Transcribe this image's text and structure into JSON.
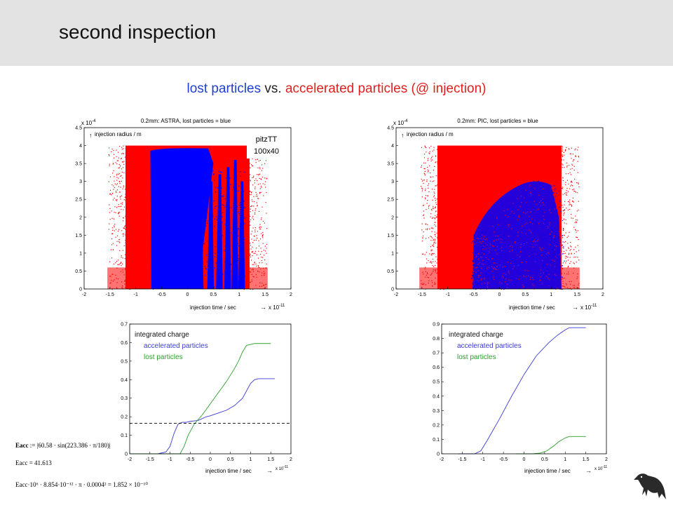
{
  "title": "second inspection",
  "subtitle": {
    "lost": "lost particles",
    "vs": " vs. ",
    "accelerated": "accelerated particles",
    "rest": " (@ injection)"
  },
  "colors": {
    "lost": "#1f3fd1",
    "accelerated": "#e0201e",
    "header": "#e3e3e3"
  },
  "scatter_left": {
    "title": "0.2mm: ASTRA, lost particles = blue",
    "ylabel": "injection radius / m",
    "xlabel": "injection time / sec",
    "yexp": "x 10",
    "yexp_power": "-4",
    "xexp": "x 10",
    "xexp_power": "-11",
    "annotation_line1": "pitzTT",
    "annotation_line2": "100x40",
    "xticks": [
      "-2",
      "-1.5",
      "-1",
      "-0.5",
      "0",
      "0.5",
      "1",
      "1.5",
      "2"
    ],
    "yticks": [
      "0",
      "0.5",
      "1",
      "1.5",
      "2",
      "2.5",
      "3",
      "3.5",
      "4",
      "4.5"
    ]
  },
  "scatter_right": {
    "title": "0.2mm: PIC, lost particles = blue",
    "ylabel": "injection radius / m",
    "xlabel": "injection time / sec",
    "yexp": "x 10",
    "yexp_power": "-4",
    "xexp": "x 10",
    "xexp_power": "-11",
    "xticks": [
      "-2",
      "-1.5",
      "-1",
      "-0.5",
      "0",
      "0.5",
      "1",
      "1.5",
      "2"
    ],
    "yticks": [
      "0",
      "0.5",
      "1",
      "1.5",
      "2",
      "2.5",
      "3",
      "3.5",
      "4",
      "4.5"
    ]
  },
  "line_left": {
    "legend_title": "integrated charge",
    "legend_blue": "accelerated particles",
    "legend_green": "lost particles",
    "xlabel": "injection time / sec",
    "xexp": "x 10",
    "xexp_power": "-11",
    "xticks": [
      "-2",
      "-1.5",
      "-1",
      "-0.5",
      "0",
      "0.5",
      "1",
      "1.5",
      "2"
    ],
    "yticks": [
      "0",
      "0.1",
      "0.2",
      "0.3",
      "0.4",
      "0.5",
      "0.6",
      "0.7"
    ]
  },
  "line_right": {
    "legend_title": "integrated charge",
    "legend_blue": "accelerated particles",
    "legend_green": "lost particles",
    "xlabel": "injection time / sec",
    "xexp": "x 10",
    "xexp_power": "-11",
    "xticks": [
      "-2",
      "-1.5",
      "-1",
      "-0.5",
      "0",
      "0.5",
      "1",
      "1.5",
      "2"
    ],
    "yticks": [
      "0",
      "0.1",
      "0.2",
      "0.3",
      "0.4",
      "0.5",
      "0.6",
      "0.7",
      "0.8",
      "0.9"
    ]
  },
  "chart_data": [
    {
      "type": "scatter",
      "title": "0.2mm: ASTRA, lost particles = blue",
      "xlabel": "injection time / sec",
      "ylabel": "injection radius / m",
      "x_multiplier": "1e-11",
      "y_multiplier": "1e-4",
      "xlim": [
        -2,
        2
      ],
      "ylim": [
        0,
        4.5
      ],
      "grid": false,
      "series": [
        {
          "color": "#ff0000",
          "x_range": [
            -1.3,
            1.3
          ],
          "y_range": [
            0,
            4
          ]
        },
        {
          "color": "#0000ff",
          "x_range": [
            -0.7,
            1.1
          ],
          "y_range": [
            0,
            3.95
          ]
        }
      ]
    },
    {
      "type": "scatter",
      "title": "0.2mm: PIC, lost particles = blue",
      "xlabel": "injection time / sec",
      "ylabel": "injection radius / m",
      "x_multiplier": "1e-11",
      "y_multiplier": "1e-4",
      "xlim": [
        -2,
        2
      ],
      "ylim": [
        0,
        4.5
      ],
      "grid": false,
      "series": [
        {
          "color": "#ff0000",
          "x_range": [
            -1.3,
            1.3
          ],
          "y_range": [
            0,
            4
          ]
        },
        {
          "color": "#0000ff",
          "x_range": [
            -0.5,
            1.2
          ],
          "y_range": [
            0,
            3.1
          ]
        }
      ]
    },
    {
      "type": "line",
      "xlabel": "injection time / sec",
      "x_multiplier": "1e-11",
      "xlim": [
        -2,
        2
      ],
      "ylim": [
        0,
        0.7
      ],
      "grid": false,
      "hline": 0.165,
      "series": [
        {
          "name": "accelerated particles",
          "color": "#3b3bd6",
          "x": [
            -2,
            -1.5,
            -1.3,
            -1.1,
            -1.0,
            -0.9,
            -0.8,
            -0.7,
            -0.6,
            -0.5,
            -0.3,
            -0.1,
            0.0,
            0.2,
            0.4,
            0.6,
            0.8,
            0.9,
            1.0,
            1.1,
            1.2,
            1.3,
            1.5,
            1.6
          ],
          "y": [
            0,
            0,
            0,
            0.01,
            0.04,
            0.11,
            0.16,
            0.17,
            0.17,
            0.175,
            0.18,
            0.2,
            0.205,
            0.22,
            0.235,
            0.26,
            0.3,
            0.34,
            0.38,
            0.4,
            0.405,
            0.405,
            0.405,
            0.405
          ]
        },
        {
          "name": "lost particles",
          "color": "#2ca02c",
          "x": [
            -2,
            -1,
            -0.75,
            -0.65,
            -0.55,
            -0.4,
            -0.2,
            0,
            0.2,
            0.4,
            0.6,
            0.7,
            0.8,
            0.9,
            1.0,
            1.1,
            1.5
          ],
          "y": [
            0,
            0,
            0,
            0.04,
            0.1,
            0.16,
            0.21,
            0.27,
            0.33,
            0.39,
            0.46,
            0.5,
            0.55,
            0.585,
            0.59,
            0.595,
            0.595
          ]
        }
      ]
    },
    {
      "type": "line",
      "xlabel": "injection time / sec",
      "x_multiplier": "1e-11",
      "xlim": [
        -2,
        2
      ],
      "ylim": [
        0,
        0.9
      ],
      "grid": false,
      "series": [
        {
          "name": "accelerated particles",
          "color": "#3b3bd6",
          "x": [
            -1.6,
            -1.2,
            -1.05,
            -0.9,
            -0.6,
            -0.3,
            0,
            0.3,
            0.6,
            0.8,
            1.0,
            1.1,
            1.3,
            1.5
          ],
          "y": [
            0,
            0,
            0.02,
            0.09,
            0.24,
            0.4,
            0.55,
            0.68,
            0.77,
            0.82,
            0.86,
            0.875,
            0.875,
            0.875
          ]
        },
        {
          "name": "lost particles",
          "color": "#2ca02c",
          "x": [
            -0.2,
            0.2,
            0.4,
            0.55,
            0.7,
            0.85,
            1.0,
            1.1,
            1.3,
            1.5
          ],
          "y": [
            0,
            0,
            0.005,
            0.02,
            0.05,
            0.085,
            0.11,
            0.12,
            0.12,
            0.12
          ]
        }
      ]
    }
  ],
  "formulas": {
    "line1_lhs": "Eacc",
    "line1_rhs": ":= |60.58 · sin(223.386 · π/180)|",
    "line2": "Eacc = 41.613",
    "line3": "Eacc·10⁶ · 8.854·10⁻¹² · π · 0.0004² = 1.852 × 10⁻¹⁰"
  }
}
